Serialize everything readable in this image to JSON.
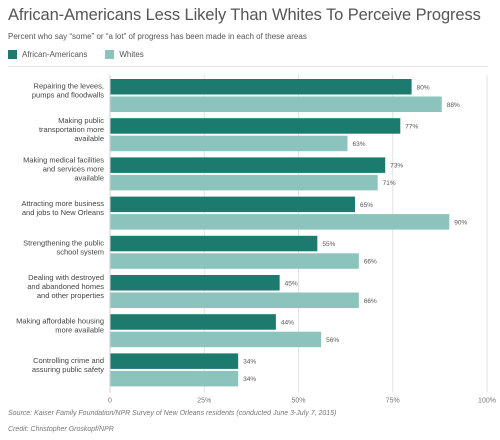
{
  "chart_data": {
    "type": "bar",
    "orientation": "horizontal",
    "title": "African-Americans Less Likely Than Whites To Perceive Progress",
    "subtitle": "Percent who say “some” or “a lot” of progress has been made in each of these areas",
    "categories": [
      "Repairing the levees, pumps and floodwalls",
      "Making public transportation more available",
      "Making medical facilities and services more available",
      "Attracting more business and jobs to New Orleans",
      "Strengthening the public school system",
      "Dealing with destroyed and abandoned homes and other properties",
      "Making affordable housing more available",
      "Controlling crime and assuring public safety"
    ],
    "category_lines": [
      [
        "Repairing the levees,",
        "pumps and floodwalls"
      ],
      [
        "Making public",
        "transportation more",
        "available"
      ],
      [
        "Making medical facilities",
        "and services more",
        "available"
      ],
      [
        "Attracting more business",
        "and jobs to New Orleans"
      ],
      [
        "Strengthening the public",
        "school system"
      ],
      [
        "Dealing with destroyed",
        "and abandoned homes",
        "and other properties"
      ],
      [
        "Making affordable housing",
        "more available"
      ],
      [
        "Controlling crime and",
        "assuring public safety"
      ]
    ],
    "series": [
      {
        "name": "African-Americans",
        "color": "#1c7a6f",
        "values": [
          80,
          77,
          73,
          65,
          55,
          45,
          44,
          34
        ],
        "labels": [
          "80%",
          "77%",
          "73%",
          "65%",
          "55%",
          "45%",
          "44%",
          "34%"
        ]
      },
      {
        "name": "Whites",
        "color": "#8cc4bd",
        "values": [
          88,
          63,
          71,
          90,
          66,
          66,
          56,
          34
        ],
        "labels": [
          "88%",
          "63%",
          "71%",
          "90%",
          "66%",
          "66%",
          "56%",
          "34%"
        ]
      }
    ],
    "xlim": [
      0,
      100
    ],
    "xticks": [
      0,
      25,
      50,
      75,
      100
    ],
    "xtick_labels": [
      "0",
      "25%",
      "50%",
      "75%",
      "100%"
    ],
    "grid": true,
    "legend_position": "top-left"
  },
  "footer": {
    "source": "Source: Kaiser Family Foundation/NPR Survey of New Orleans residents (conducted June 3-July 7, 2015)",
    "credit": "Credit: Christopher Groskopf/NPR"
  }
}
